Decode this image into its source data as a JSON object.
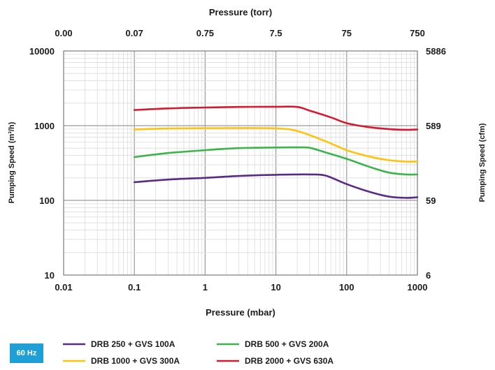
{
  "badge": "60 Hz",
  "chart_data": {
    "type": "line",
    "xscale": "log",
    "yscale": "log",
    "xlabel": "Pressure (mbar)",
    "x_top_label": "Pressure (torr)",
    "ylabel_left": "Pumping Speed (m³/h)",
    "ylabel_right": "Pumping Speed (cfm)",
    "xlim": [
      0.01,
      1000
    ],
    "ylim": [
      10,
      10000
    ],
    "grid": true,
    "legend_position": "bottom",
    "x_ticks": [
      "0.01",
      "0.1",
      "1",
      "10",
      "100",
      "1000"
    ],
    "x_top_ticks": [
      "0.00",
      "0.07",
      "0.75",
      "7.5",
      "75",
      "750"
    ],
    "y_ticks_left": [
      "10",
      "100",
      "1000",
      "10000"
    ],
    "y_ticks_right": [
      "6",
      "59",
      "589",
      "5886"
    ],
    "series": [
      {
        "name": "DRB 250 + GVS 100A",
        "color": "#5b2a86",
        "points": [
          [
            0.1,
            175
          ],
          [
            0.3,
            190
          ],
          [
            1,
            200
          ],
          [
            3,
            212
          ],
          [
            10,
            220
          ],
          [
            20,
            222
          ],
          [
            30,
            222
          ],
          [
            50,
            215
          ],
          [
            100,
            165
          ],
          [
            200,
            132
          ],
          [
            400,
            112
          ],
          [
            700,
            108
          ],
          [
            1000,
            110
          ]
        ]
      },
      {
        "name": "DRB 500 + GVS 200A",
        "color": "#3bb54a",
        "points": [
          [
            0.1,
            380
          ],
          [
            0.3,
            430
          ],
          [
            1,
            470
          ],
          [
            3,
            500
          ],
          [
            10,
            510
          ],
          [
            20,
            512
          ],
          [
            30,
            505
          ],
          [
            50,
            440
          ],
          [
            100,
            360
          ],
          [
            200,
            285
          ],
          [
            400,
            235
          ],
          [
            700,
            222
          ],
          [
            1000,
            222
          ]
        ]
      },
      {
        "name": "DRB 1000 + GVS 300A",
        "color": "#ffc20e",
        "points": [
          [
            0.1,
            890
          ],
          [
            0.3,
            915
          ],
          [
            1,
            925
          ],
          [
            3,
            930
          ],
          [
            10,
            920
          ],
          [
            20,
            850
          ],
          [
            50,
            620
          ],
          [
            100,
            470
          ],
          [
            200,
            390
          ],
          [
            400,
            345
          ],
          [
            700,
            330
          ],
          [
            1000,
            332
          ]
        ]
      },
      {
        "name": "DRB 2000 + GVS 630A",
        "color": "#d7192f",
        "points": [
          [
            0.1,
            1620
          ],
          [
            0.3,
            1700
          ],
          [
            1,
            1750
          ],
          [
            3,
            1780
          ],
          [
            10,
            1790
          ],
          [
            20,
            1780
          ],
          [
            30,
            1590
          ],
          [
            60,
            1290
          ],
          [
            100,
            1080
          ],
          [
            200,
            960
          ],
          [
            400,
            900
          ],
          [
            700,
            880
          ],
          [
            1000,
            890
          ]
        ]
      }
    ]
  }
}
